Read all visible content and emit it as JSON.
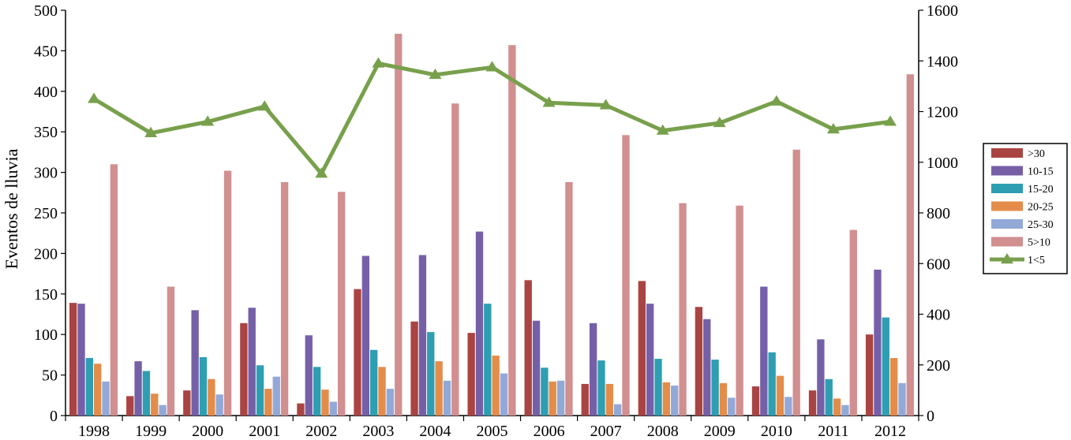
{
  "chart_data": {
    "type": "bar",
    "categories": [
      "1998",
      "1999",
      "2000",
      "2001",
      "2002",
      "2003",
      "2004",
      "2005",
      "2006",
      "2007",
      "2008",
      "2009",
      "2010",
      "2011",
      "2012"
    ],
    "ylabel": "Eventos de lluvia",
    "ylim": [
      0,
      500
    ],
    "y_ticks": [
      "0",
      "50",
      "100",
      "150",
      "200",
      "250",
      "300",
      "350",
      "400",
      "450",
      "500"
    ],
    "y2lim": [
      0,
      1600
    ],
    "y2_ticks": [
      "0",
      "200",
      "400",
      "600",
      "800",
      "1000",
      "1200",
      "1400",
      "1600"
    ],
    "grid": false,
    "legend_position": "right",
    "series": [
      {
        "name": ">30",
        "kind": "bar",
        "axis": "left",
        "color": "#a94442",
        "values": [
          139,
          24,
          31,
          114,
          15,
          156,
          116,
          102,
          167,
          39,
          166,
          134,
          36,
          31,
          100
        ]
      },
      {
        "name": "10-15",
        "kind": "bar",
        "axis": "left",
        "color": "#7560a8",
        "values": [
          138,
          67,
          130,
          133,
          99,
          197,
          198,
          227,
          117,
          114,
          138,
          119,
          159,
          94,
          180
        ]
      },
      {
        "name": "15-20",
        "kind": "bar",
        "axis": "left",
        "color": "#2e9eb2",
        "values": [
          71,
          55,
          72,
          62,
          60,
          81,
          103,
          138,
          59,
          68,
          70,
          69,
          78,
          45,
          121
        ]
      },
      {
        "name": "20-25",
        "kind": "bar",
        "axis": "left",
        "color": "#e48c4a",
        "values": [
          64,
          27,
          45,
          33,
          32,
          60,
          67,
          74,
          42,
          39,
          41,
          40,
          49,
          21,
          71
        ]
      },
      {
        "name": "25-30",
        "kind": "bar",
        "axis": "left",
        "color": "#92a9d8",
        "values": [
          42,
          13,
          26,
          48,
          17,
          33,
          43,
          52,
          43,
          14,
          37,
          22,
          23,
          13,
          40
        ]
      },
      {
        "name": "5>10",
        "kind": "bar",
        "axis": "left",
        "color": "#d18f90",
        "values": [
          310,
          159,
          302,
          288,
          276,
          471,
          385,
          457,
          288,
          346,
          262,
          259,
          328,
          229,
          421
        ]
      },
      {
        "name": "1<5",
        "kind": "line",
        "axis": "right",
        "color": "#78a04c",
        "values": [
          1250,
          1115,
          1160,
          1220,
          955,
          1390,
          1345,
          1375,
          1235,
          1225,
          1125,
          1155,
          1240,
          1130,
          1160
        ]
      }
    ]
  }
}
